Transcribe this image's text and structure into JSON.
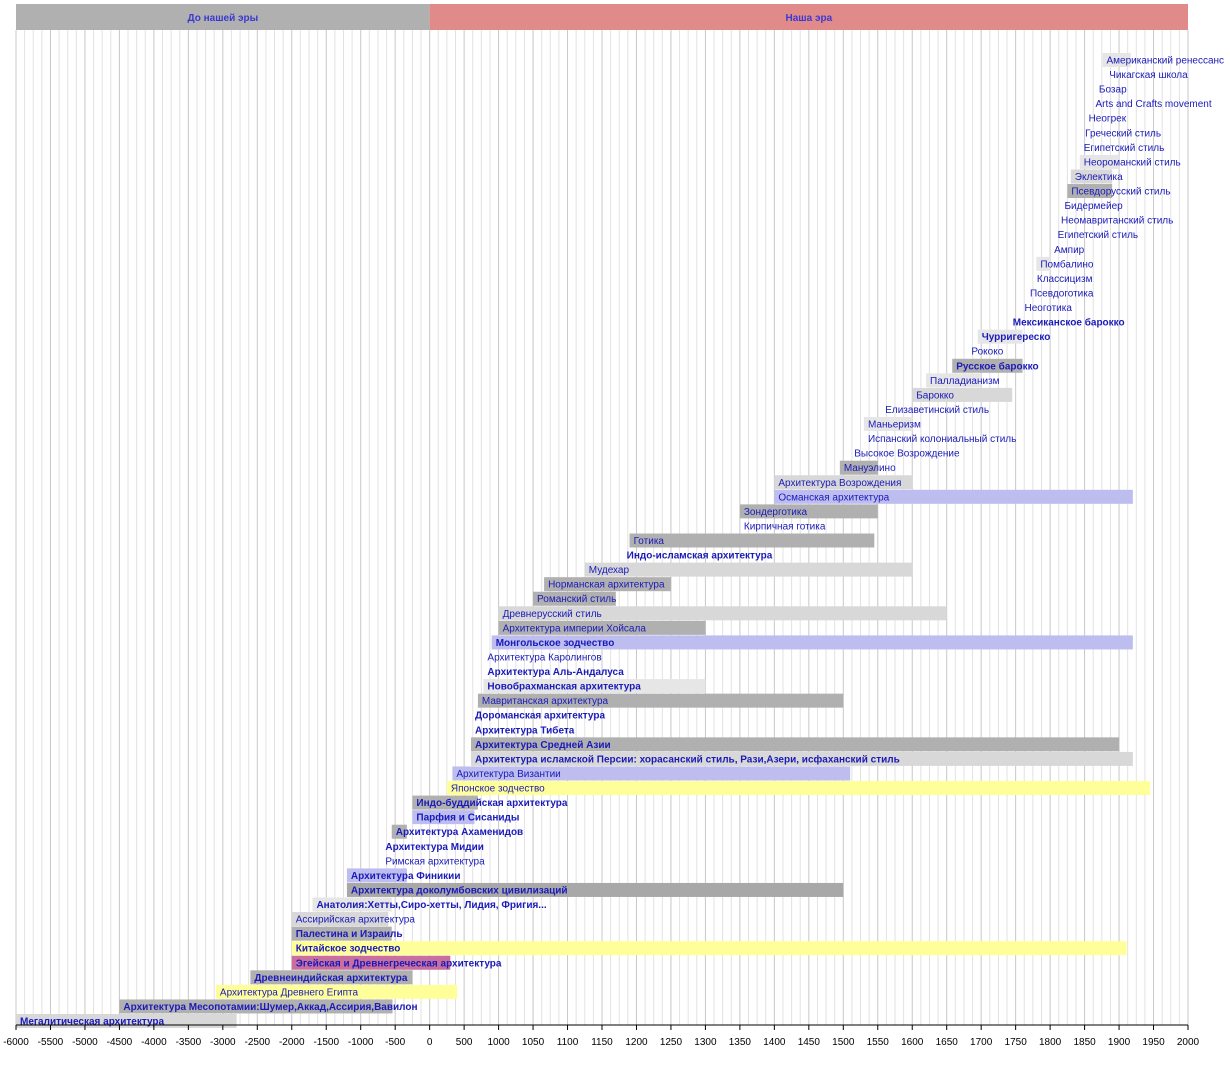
{
  "chart_data": {
    "type": "timeline",
    "xlim": [
      -6000,
      2000
    ],
    "x_ticks": [
      -6000,
      -5500,
      -5000,
      -4500,
      -4000,
      -3500,
      -3000,
      -2500,
      -2000,
      -1500,
      -1000,
      -500,
      0,
      500,
      1000,
      1050,
      1100,
      1150,
      1200,
      1250,
      1300,
      1350,
      1400,
      1450,
      1500,
      1550,
      1600,
      1650,
      1700,
      1750,
      1800,
      1850,
      1900,
      1950,
      2000
    ],
    "eras": [
      {
        "label": "До нашей эры",
        "start": -6000,
        "end": 0,
        "color": "#b0b0b0"
      },
      {
        "label": "Наша эра",
        "start": 0,
        "end": 2000,
        "color": "#e08a8a"
      }
    ],
    "styles": [
      {
        "label": "Американский ренессанс",
        "start": 1876,
        "end": 1917,
        "color": "#e6e6e6",
        "bold": false
      },
      {
        "label": "Чикагская школа",
        "start": 1880,
        "end": 1910,
        "color": "none",
        "bold": false
      },
      {
        "label": "Бозар",
        "start": 1865,
        "end": 1920,
        "color": "none",
        "bold": false
      },
      {
        "label": "Arts and Crafts movement",
        "start": 1860,
        "end": 1910,
        "color": "none",
        "bold": false
      },
      {
        "label": "Неогрек",
        "start": 1850,
        "end": 1870,
        "color": "none",
        "bold": false
      },
      {
        "label": "Греческий стиль",
        "start": 1845,
        "end": 1880,
        "color": "none",
        "bold": false
      },
      {
        "label": "Египетский стиль",
        "start": 1843,
        "end": 1880,
        "color": "none",
        "bold": false
      },
      {
        "label": "Неороманский стиль",
        "start": 1843,
        "end": 1900,
        "color": "#e6e6e6",
        "bold": false
      },
      {
        "label": "Эклектика",
        "start": 1830,
        "end": 1890,
        "color": "#d8d8d8",
        "bold": false
      },
      {
        "label": "Псевдорусский стиль",
        "start": 1825,
        "end": 1890,
        "color": "#b0b0b0",
        "bold": false
      },
      {
        "label": "Бидермейер",
        "start": 1815,
        "end": 1848,
        "color": "none",
        "bold": false
      },
      {
        "label": "Неомавританский стиль",
        "start": 1810,
        "end": 1880,
        "color": "none",
        "bold": false
      },
      {
        "label": "Египетский стиль",
        "start": 1805,
        "end": 1850,
        "color": "none",
        "bold": false
      },
      {
        "label": "Ампир",
        "start": 1800,
        "end": 1830,
        "color": "none",
        "bold": false
      },
      {
        "label": "Помбалино",
        "start": 1780,
        "end": 1800,
        "color": "#e6e6e6",
        "bold": false
      },
      {
        "label": "Классицизм",
        "start": 1775,
        "end": 1830,
        "color": "none",
        "bold": false
      },
      {
        "label": "Псевдоготика",
        "start": 1765,
        "end": 1840,
        "color": "none",
        "bold": false
      },
      {
        "label": "Неоготика",
        "start": 1757,
        "end": 1800,
        "color": "none",
        "bold": false
      },
      {
        "label": "Мексиканское барокко",
        "start": 1740,
        "end": 1800,
        "color": "none",
        "bold": true
      },
      {
        "label": "Чурригереско",
        "start": 1695,
        "end": 1760,
        "color": "#e6e6e6",
        "bold": true
      },
      {
        "label": "Рококо",
        "start": 1680,
        "end": 1750,
        "color": "none",
        "bold": false
      },
      {
        "label": "Русское барокко",
        "start": 1658,
        "end": 1760,
        "color": "#b0b0b0",
        "bold": true
      },
      {
        "label": "Палладианизм",
        "start": 1620,
        "end": 1700,
        "color": "#e6e6e6",
        "bold": false
      },
      {
        "label": "Барокко",
        "start": 1600,
        "end": 1745,
        "color": "#d8d8d8",
        "bold": false
      },
      {
        "label": "Елизаветинский стиль",
        "start": 1555,
        "end": 1640,
        "color": "none",
        "bold": false
      },
      {
        "label": "Маньеризм",
        "start": 1530,
        "end": 1600,
        "color": "#e6e6e6",
        "bold": false
      },
      {
        "label": "Испанский колониальный стиль",
        "start": 1530,
        "end": 1700,
        "color": "none",
        "bold": false
      },
      {
        "label": "Высокое Возрождение",
        "start": 1510,
        "end": 1600,
        "color": "none",
        "bold": false
      },
      {
        "label": "Мануэлино",
        "start": 1495,
        "end": 1550,
        "color": "#b0b0b0",
        "bold": false
      },
      {
        "label": "Архитектура Возрождения",
        "start": 1400,
        "end": 1600,
        "color": "#d8d8d8",
        "bold": false
      },
      {
        "label": "Османская архитектура",
        "start": 1400,
        "end": 1920,
        "color": "#bdbdf0",
        "bold": false
      },
      {
        "label": "Зондерготика",
        "start": 1350,
        "end": 1550,
        "color": "#b0b0b0",
        "bold": false
      },
      {
        "label": "Кирпичная готика",
        "start": 1350,
        "end": 1500,
        "color": "none",
        "bold": false
      },
      {
        "label": "Готика",
        "start": 1190,
        "end": 1545,
        "color": "#b0b0b0",
        "bold": false
      },
      {
        "label": "Индо-исламская архитектура",
        "start": 1180,
        "end": 1550,
        "color": "none",
        "bold": true
      },
      {
        "label": "Мудехар",
        "start": 1125,
        "end": 1600,
        "color": "#d8d8d8",
        "bold": false
      },
      {
        "label": "Норманская архитектура",
        "start": 1066,
        "end": 1250,
        "color": "#b0b0b0",
        "bold": false
      },
      {
        "label": "Романский стиль",
        "start": 1050,
        "end": 1170,
        "color": "#b0b0b0",
        "bold": false
      },
      {
        "label": "Древнерусский стиль",
        "start": 1000,
        "end": 1650,
        "color": "#d8d8d8",
        "bold": false
      },
      {
        "label": "Архитектура империи Хойсала",
        "start": 1000,
        "end": 1300,
        "color": "#b0b0b0",
        "bold": false
      },
      {
        "label": "Монгольское зодчество",
        "start": 900,
        "end": 1920,
        "color": "#bdbdf0",
        "bold": true
      },
      {
        "label": "Архитектура Каролингов",
        "start": 780,
        "end": 900,
        "color": "none",
        "bold": false
      },
      {
        "label": "Архитектура Аль-Андалуса",
        "start": 780,
        "end": 1490,
        "color": "none",
        "bold": true
      },
      {
        "label": "Новобрахманская архитектура",
        "start": 780,
        "end": 1300,
        "color": "#e6e6e6",
        "bold": true
      },
      {
        "label": "Мавританская архитектура",
        "start": 700,
        "end": 1500,
        "color": "#b0b0b0",
        "bold": false
      },
      {
        "label": "Дороманская архитектура",
        "start": 600,
        "end": 1000,
        "color": "none",
        "bold": true
      },
      {
        "label": "Архитектура Тибета",
        "start": 600,
        "end": 1900,
        "color": "none",
        "bold": true
      },
      {
        "label": "Архитектура Средней Азии",
        "start": 600,
        "end": 1900,
        "color": "#b0b0b0",
        "bold": true
      },
      {
        "label": "Архитектура исламской Персии: хорасанский стиль, Рази,Азери, исфаханский стиль",
        "start": 600,
        "end": 1920,
        "color": "#d8d8d8",
        "bold": true
      },
      {
        "label": "Архитектура Византии",
        "start": 330,
        "end": 1510,
        "color": "#bdbdf0",
        "bold": false
      },
      {
        "label": "Японское зодчество",
        "start": 250,
        "end": 1945,
        "color": "#ffff99",
        "bold": false
      },
      {
        "label": "Индо-буддийская архитектура",
        "start": -250,
        "end": 700,
        "color": "#b0b0b0",
        "bold": true
      },
      {
        "label": "Парфия и Сисаниды",
        "start": -250,
        "end": 650,
        "color": "#bdbdf0",
        "bold": true
      },
      {
        "label": "Архитектура Ахаменидов",
        "start": -550,
        "end": -330,
        "color": "#b0b0b0",
        "bold": true
      },
      {
        "label": "Архитектура Мидии",
        "start": -700,
        "end": -550,
        "color": "none",
        "bold": true
      },
      {
        "label": "Римская архитектура",
        "start": -700,
        "end": 480,
        "color": "none",
        "bold": false
      },
      {
        "label": "Архитектура Финикии",
        "start": -1200,
        "end": -330,
        "color": "#bdbdf0",
        "bold": true
      },
      {
        "label": "Архитектура доколумбовских цивилизаций",
        "start": -1200,
        "end": 1500,
        "color": "#a8a8a8",
        "bold": true
      },
      {
        "label": "Анатолия:Хетты,Сиро-хетты, Лидия, Фригия...",
        "start": -1700,
        "end": -550,
        "color": "#e6e6e6",
        "bold": true
      },
      {
        "label": "Ассирийская архитектура",
        "start": -2000,
        "end": -600,
        "color": "#d8d8d8",
        "bold": false
      },
      {
        "label": "Палестина и Израиль",
        "start": -2000,
        "end": -550,
        "color": "#b0b0b0",
        "bold": true
      },
      {
        "label": "Китайское зодчество",
        "start": -2000,
        "end": 1911,
        "color": "#ffff99",
        "bold": true
      },
      {
        "label": "Эгейская и Древнегреческая архитектура",
        "start": -2000,
        "end": 300,
        "color": "#c96fa0",
        "bold": true
      },
      {
        "label": "Древнеиндийская архитектура",
        "start": -2600,
        "end": -250,
        "color": "#b0b0b0",
        "bold": true
      },
      {
        "label": "Архитектура Древнего Египта",
        "start": -3100,
        "end": 400,
        "color": "#ffff99",
        "bold": false
      },
      {
        "label": "Архитектура Месопотамии:Шумер,Аккад,Ассирия,Вавилон",
        "start": -4500,
        "end": -539,
        "color": "#b0b0b0",
        "bold": true
      },
      {
        "label": "Мегалитическая архитектура",
        "start": -6000,
        "end": -2800,
        "color": "#d8d8d8",
        "bold": true
      }
    ]
  }
}
